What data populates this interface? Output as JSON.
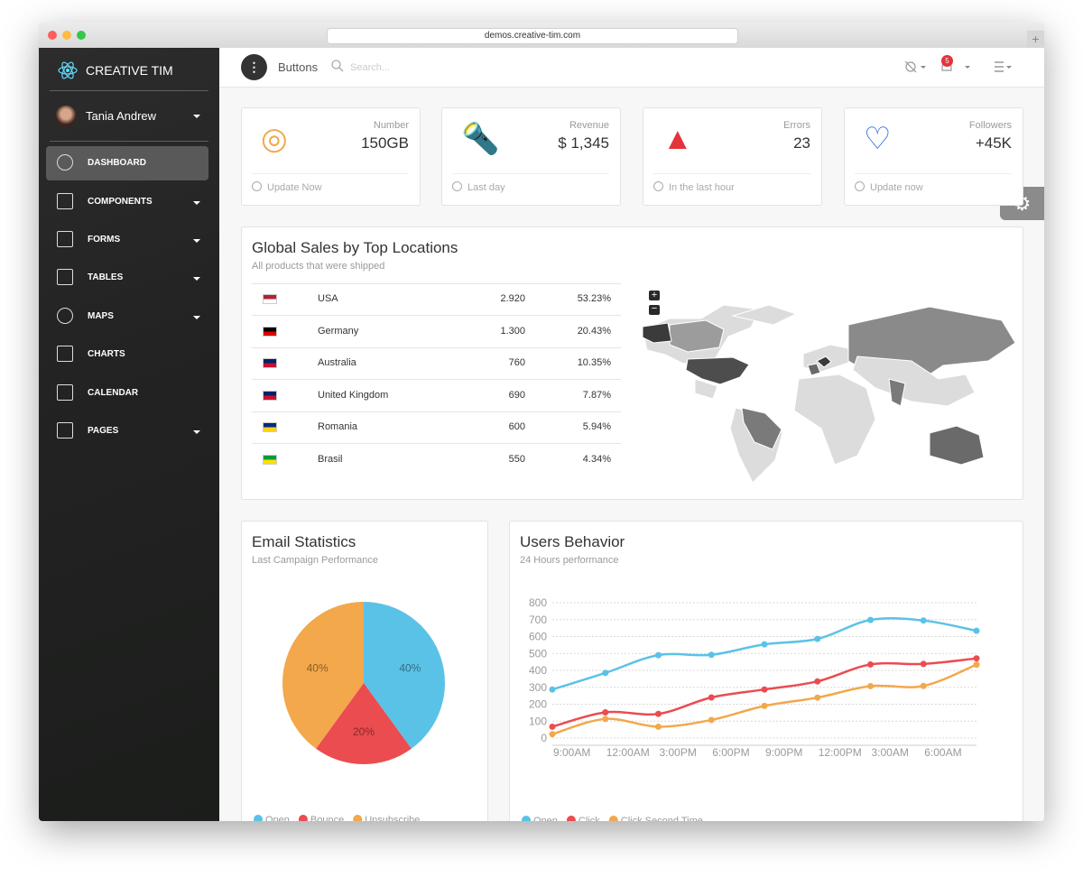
{
  "browser": {
    "url": "demos.creative-tim.com"
  },
  "sidebar": {
    "brand": "CREATIVE TIM",
    "user": "Tania Andrew",
    "menu": [
      {
        "label": "DASHBOARD",
        "active": true
      },
      {
        "label": "COMPONENTS",
        "submenu": true
      },
      {
        "label": "FORMS",
        "submenu": true
      },
      {
        "label": "TABLES",
        "submenu": true
      },
      {
        "label": "MAPS",
        "submenu": true
      },
      {
        "label": "CHARTS"
      },
      {
        "label": "CALENDAR"
      },
      {
        "label": "PAGES",
        "submenu": true
      }
    ]
  },
  "navbar": {
    "title": "Buttons",
    "search_placeholder": "Search...",
    "notifications": 5
  },
  "stats": [
    {
      "label": "Number",
      "value": "150GB",
      "footer": "Update Now"
    },
    {
      "label": "Revenue",
      "value": "$ 1,345",
      "footer": "Last day"
    },
    {
      "label": "Errors",
      "value": "23",
      "footer": "In the last hour"
    },
    {
      "label": "Followers",
      "value": "+45K",
      "footer": "Update now"
    }
  ],
  "sales": {
    "title": "Global Sales by Top Locations",
    "subtitle": "All products that were shipped",
    "rows": [
      [
        "USA",
        "2.920",
        "53.23%"
      ],
      [
        "Germany",
        "1.300",
        "20.43%"
      ],
      [
        "Australia",
        "760",
        "10.35%"
      ],
      [
        "United Kingdom",
        "690",
        "7.87%"
      ],
      [
        "Romania",
        "600",
        "5.94%"
      ],
      [
        "Brasil",
        "550",
        "4.34%"
      ]
    ]
  },
  "chart_data": [
    {
      "type": "pie",
      "title": "Email Statistics",
      "subtitle": "Last Campaign Performance",
      "categories": [
        "Open",
        "Bounce",
        "Unsubscribe"
      ],
      "values": [
        40,
        20,
        40
      ],
      "value_labels": [
        "40%",
        "20%",
        "40%"
      ],
      "colors": [
        "#5bc2e7",
        "#ea4c50",
        "#f2a84b"
      ]
    },
    {
      "type": "line",
      "title": "Users Behavior",
      "subtitle": "24 Hours performance",
      "categories": [
        "9:00AM",
        "12:00AM",
        "3:00PM",
        "6:00PM",
        "9:00PM",
        "12:00PM",
        "3:00AM",
        "6:00AM",
        null
      ],
      "series": [
        {
          "name": "Open",
          "color": "#5bc2e7",
          "values": [
            287,
            385,
            490,
            492,
            554,
            586,
            698,
            695,
            634
          ]
        },
        {
          "name": "Click",
          "color": "#ea4c50",
          "values": [
            67,
            152,
            143,
            240,
            287,
            335,
            435,
            438,
            471
          ]
        },
        {
          "name": "Click Second Time",
          "color": "#f2a84b",
          "values": [
            23,
            113,
            67,
            107,
            190,
            239,
            307,
            308,
            434
          ]
        }
      ],
      "ylim": [
        0,
        800
      ],
      "yticks": [
        0,
        100,
        200,
        300,
        400,
        500,
        600,
        700,
        800
      ],
      "grid": true
    }
  ]
}
